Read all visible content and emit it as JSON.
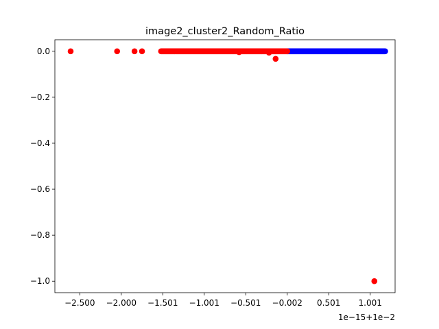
{
  "chart_data": {
    "type": "scatter",
    "title": "image2_cluster2_Random_Ratio",
    "xlabel": "",
    "ylabel": "",
    "offset_label": "1e−15+1e−2",
    "x_offset_units": "1e-15 relative to 1e-2",
    "xlim": [
      -2.8,
      1.3
    ],
    "ylim": [
      -1.05,
      0.05
    ],
    "xticks": [
      -2.5,
      -2.0,
      -1.5,
      -1.0,
      -0.5,
      0.0,
      0.5,
      1.0
    ],
    "xtick_labels": [
      "−2.500",
      "−2.000",
      "−1.501",
      "−1.001",
      "−0.501",
      "−0.002",
      "0.501",
      "1.001"
    ],
    "yticks": [
      0.0,
      -0.2,
      -0.4,
      -0.6,
      -0.8,
      -1.0
    ],
    "ytick_labels": [
      "0.0",
      "−0.2",
      "−0.4",
      "−0.6",
      "−0.8",
      "−1.0"
    ],
    "series": [
      {
        "name": "red cluster",
        "color": "#ff0000",
        "points": [
          [
            -2.61,
            0.0
          ],
          [
            -2.05,
            0.0
          ],
          [
            -1.84,
            0.0
          ],
          [
            -1.75,
            0.0
          ],
          [
            -0.14,
            -0.033
          ],
          [
            1.05,
            -1.0
          ],
          [
            -0.22,
            -0.006
          ],
          [
            -0.58,
            -0.004
          ]
        ],
        "dense_band": {
          "x_start": -1.52,
          "x_end": 0.0,
          "y": 0.0,
          "count": 220
        }
      },
      {
        "name": "blue cluster",
        "color": "#0000ff",
        "points": [],
        "dense_band": {
          "x_start": 0.0,
          "x_end": 1.18,
          "y": 0.0,
          "count": 160
        }
      }
    ]
  }
}
